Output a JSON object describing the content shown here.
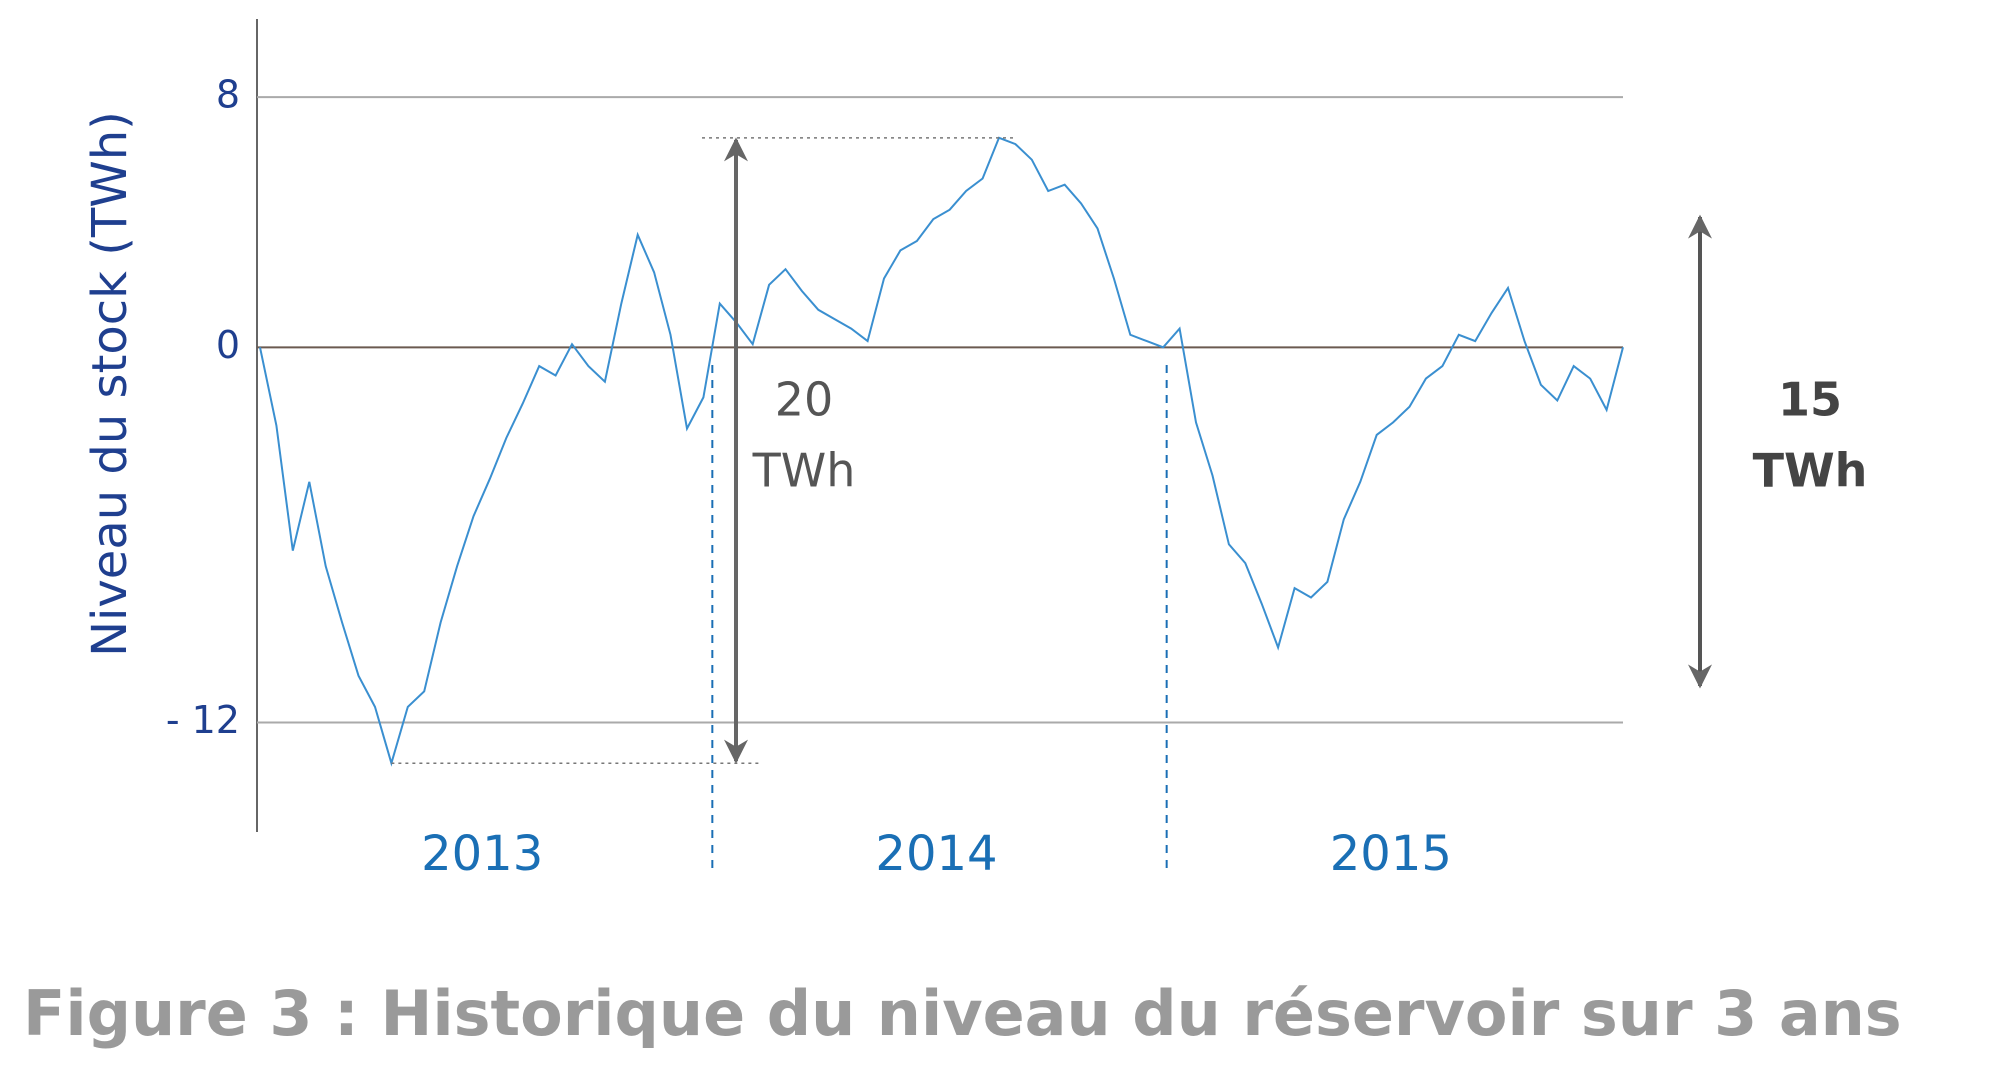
{
  "chart_data": {
    "type": "line",
    "title": "Figure 3 : Historique du niveau du réservoir sur 3 ans",
    "y_label": "Niveau du stock (TWh)",
    "period_labels": [
      "2013",
      "2014",
      "2015"
    ],
    "color": "#3a8fd0",
    "values": [
      0,
      -2.5,
      -6.5,
      -4.3,
      -7,
      -8.8,
      -10.5,
      -11.5,
      -13.3,
      -11.5,
      -11,
      -8.8,
      -7,
      -5.4,
      -4.2,
      -2.9,
      -1.8,
      -0.6,
      -0.9,
      0.1,
      -0.6,
      -1.1,
      1.4,
      3.6,
      2.4,
      0.4,
      -2.6,
      -1.6,
      1.4,
      0.8,
      0.1,
      2.0,
      2.5,
      1.8,
      1.2,
      0.9,
      0.6,
      0.2,
      2.2,
      3.1,
      3.4,
      4.1,
      4.4,
      5.0,
      5.4,
      6.7,
      6.5,
      6.0,
      5.0,
      5.2,
      4.6,
      3.8,
      2.2,
      0.4,
      0.2,
      0,
      0.6,
      -2.4,
      -4.1,
      -6.3,
      -6.9,
      -8.2,
      -9.6,
      -7.7,
      -8.0,
      -7.5,
      -5.5,
      -4.3,
      -2.8,
      -2.4,
      -1.9,
      -1.0,
      -0.6,
      0.4,
      0.2,
      1.1,
      1.9,
      0.2,
      -1.2,
      -1.7,
      -0.6,
      -1.0,
      -2.0,
      0
    ],
    "ylim": [
      -15.5,
      10.5
    ],
    "yticks": [
      8,
      0,
      {
        "value": -12,
        "label": "- 12"
      }
    ],
    "grid": true,
    "annotations": [
      {
        "value": 20,
        "unit": "TWh"
      },
      {
        "value": 15,
        "unit": "TWh"
      }
    ]
  }
}
